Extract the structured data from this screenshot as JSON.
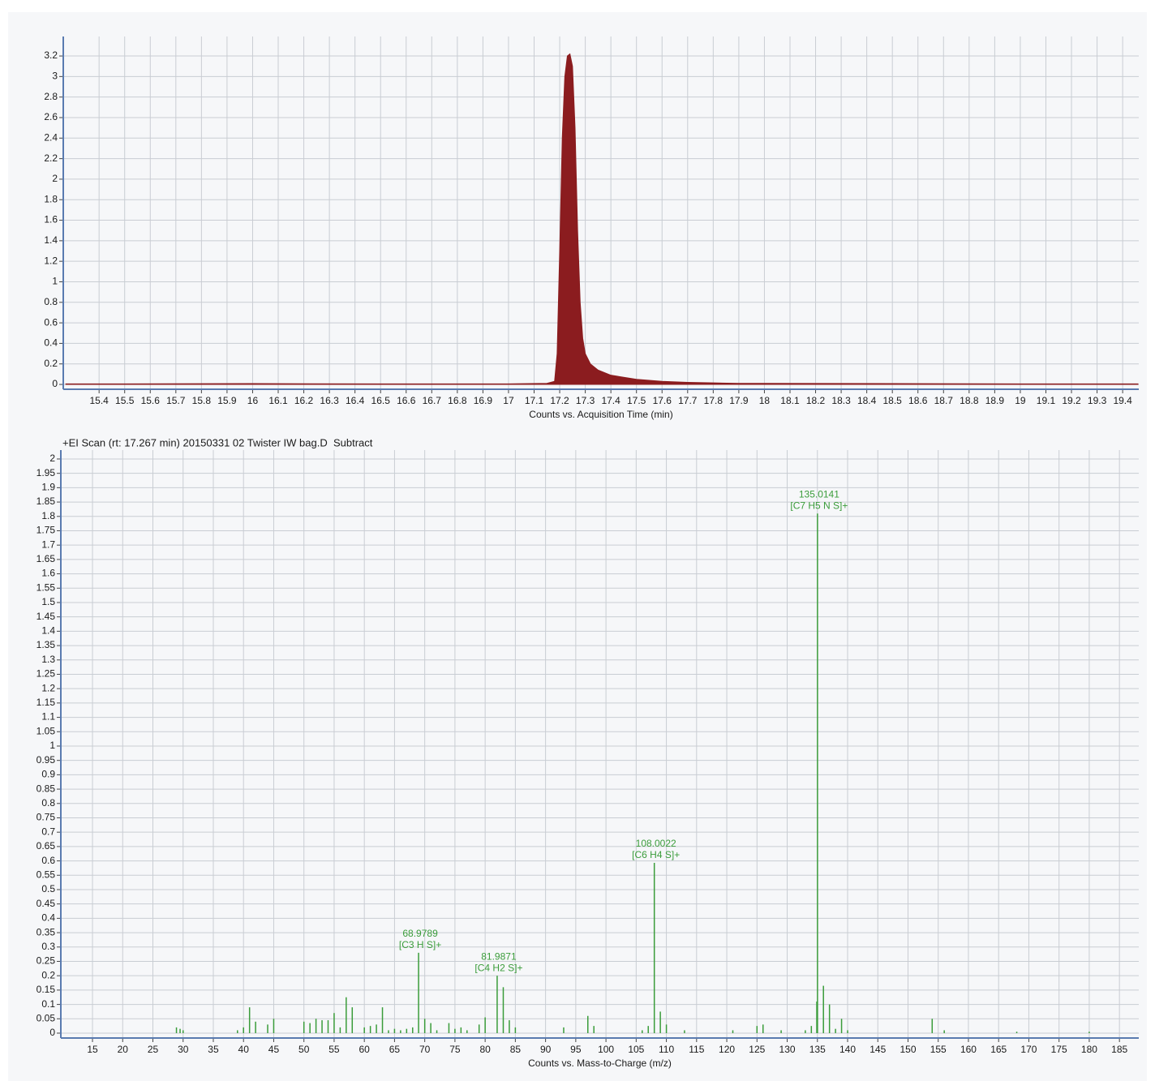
{
  "chart_data": [
    {
      "type": "area",
      "x_label": "Counts vs. Acquisition Time (min)",
      "x": [
        15.27,
        15.5,
        16,
        16.5,
        17,
        17.15,
        17.18,
        17.19,
        17.2,
        17.21,
        17.22,
        17.23,
        17.24,
        17.25,
        17.26,
        17.27,
        17.28,
        17.29,
        17.3,
        17.32,
        17.35,
        17.4,
        17.45,
        17.5,
        17.55,
        17.6,
        17.7,
        17.8,
        17.9,
        18,
        18.5,
        19,
        19.46
      ],
      "values": [
        0.005,
        0.005,
        0.008,
        0.005,
        0.005,
        0.01,
        0.03,
        0.3,
        1.3,
        2.4,
        3.0,
        3.2,
        3.22,
        3.1,
        2.5,
        1.5,
        0.8,
        0.45,
        0.3,
        0.2,
        0.14,
        0.09,
        0.07,
        0.05,
        0.04,
        0.03,
        0.02,
        0.015,
        0.01,
        0.01,
        0.008,
        0.005,
        0.005
      ],
      "color": "#8b1c1f",
      "xlim": [
        15.26,
        19.463
      ],
      "ylim": [
        -0.047,
        3.39
      ],
      "xticks": [
        15.4,
        15.5,
        15.6,
        15.7,
        15.8,
        15.9,
        16,
        16.1,
        16.2,
        16.3,
        16.4,
        16.5,
        16.6,
        16.7,
        16.8,
        16.9,
        17,
        17.1,
        17.2,
        17.3,
        17.4,
        17.5,
        17.6,
        17.7,
        17.8,
        17.9,
        18,
        18.1,
        18.2,
        18.3,
        18.4,
        18.5,
        18.6,
        18.7,
        18.8,
        18.9,
        19,
        19.1,
        19.2,
        19.3,
        19.4
      ],
      "yticks": [
        0,
        0.2,
        0.4,
        0.6,
        0.8,
        1,
        1.2,
        1.4,
        1.6,
        1.8,
        2,
        2.2,
        2.4,
        2.6,
        2.8,
        3,
        3.2
      ],
      "grid": true
    },
    {
      "type": "stem",
      "title": "+EI Scan (rt: 17.267 min) 20150331 02 Twister IW bag.D  Subtract",
      "x_label": "Counts vs. Mass-to-Charge (m/z)",
      "x": [
        28.9,
        29.5,
        30,
        39,
        40,
        41,
        42,
        44,
        45,
        50,
        51,
        52,
        53,
        54,
        55,
        56,
        57,
        58,
        60,
        61,
        62,
        63,
        64,
        65,
        66,
        67,
        68,
        70,
        71,
        72,
        74,
        75,
        76,
        77,
        79,
        80,
        83,
        84,
        85,
        93,
        97,
        98,
        106,
        107,
        109,
        110,
        113,
        121,
        125,
        126,
        129,
        133,
        134,
        134.9,
        136,
        137,
        138,
        139,
        140,
        154,
        156,
        168,
        180
      ],
      "values": [
        0.02,
        0.015,
        0.01,
        0.01,
        0.02,
        0.09,
        0.04,
        0.03,
        0.05,
        0.04,
        0.035,
        0.05,
        0.045,
        0.045,
        0.07,
        0.02,
        0.125,
        0.09,
        0.02,
        0.025,
        0.03,
        0.09,
        0.01,
        0.015,
        0.01,
        0.015,
        0.02,
        0.05,
        0.035,
        0.01,
        0.035,
        0.015,
        0.02,
        0.01,
        0.03,
        0.055,
        0.16,
        0.045,
        0.02,
        0.02,
        0.06,
        0.025,
        0.01,
        0.025,
        0.075,
        0.03,
        0.01,
        0.01,
        0.025,
        0.03,
        0.01,
        0.01,
        0.025,
        0.11,
        0.165,
        0.1,
        0.015,
        0.05,
        0.01,
        0.05,
        0.01,
        0.005,
        0.005
      ],
      "peaks": [
        {
          "mz": 68.9789,
          "intensity": 0.28,
          "formula": "[C3 H S]+"
        },
        {
          "mz": 81.9871,
          "intensity": 0.2,
          "formula": "[C4 H2 S]+"
        },
        {
          "mz": 108.0022,
          "intensity": 0.593,
          "formula": "[C6 H4 S]+"
        },
        {
          "mz": 135.0141,
          "intensity": 1.81,
          "formula": "[C7 H5 N S]+"
        }
      ],
      "color": "#3a9c3a",
      "xlim": [
        9.76,
        188.2
      ],
      "ylim": [
        -0.017,
        2.031
      ],
      "xticks": [
        15,
        20,
        25,
        30,
        35,
        40,
        45,
        50,
        55,
        60,
        65,
        70,
        75,
        80,
        85,
        90,
        95,
        100,
        105,
        110,
        115,
        120,
        125,
        130,
        135,
        140,
        145,
        150,
        155,
        160,
        165,
        170,
        175,
        180,
        185
      ],
      "yticks": [
        0,
        0.05,
        0.1,
        0.15,
        0.2,
        0.25,
        0.3,
        0.35,
        0.4,
        0.45,
        0.5,
        0.55,
        0.6,
        0.65,
        0.7,
        0.75,
        0.8,
        0.85,
        0.9,
        0.95,
        1,
        1.05,
        1.1,
        1.15,
        1.2,
        1.25,
        1.3,
        1.35,
        1.4,
        1.45,
        1.5,
        1.55,
        1.6,
        1.65,
        1.7,
        1.75,
        1.8,
        1.85,
        1.9,
        1.95,
        2
      ],
      "grid": true
    }
  ]
}
